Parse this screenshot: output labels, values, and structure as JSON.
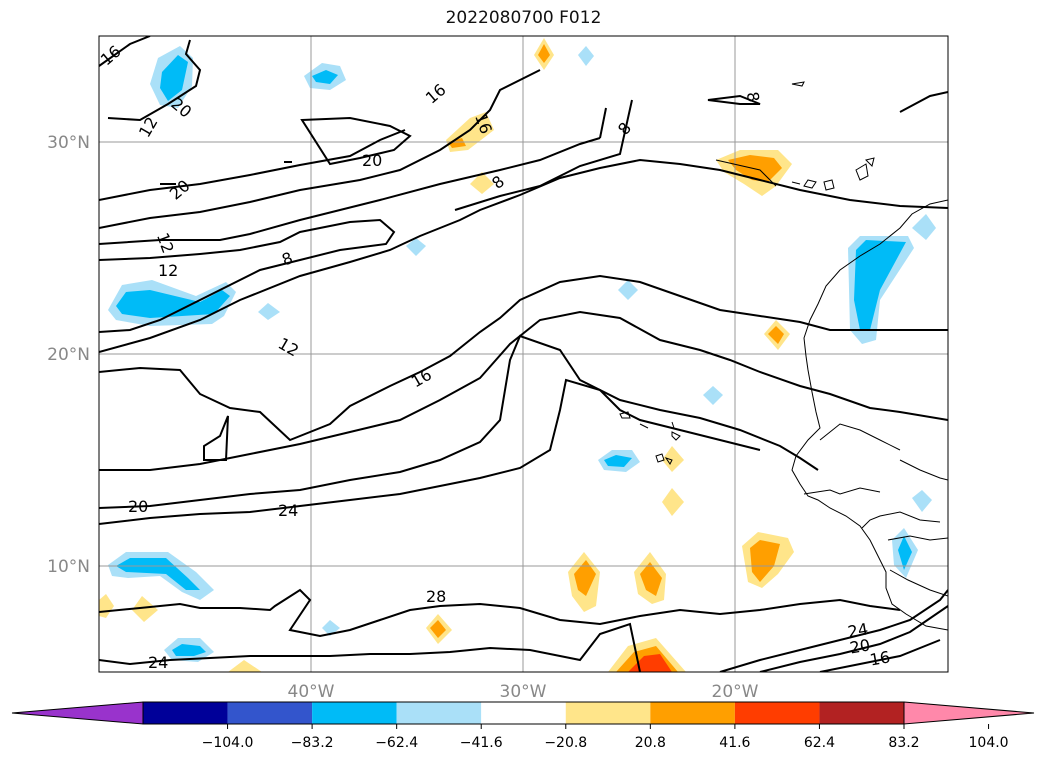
{
  "title": "2022080700 F012",
  "lat_labels": [
    "30°N",
    "20°N",
    "10°N"
  ],
  "lon_labels": [
    "40°W",
    "30°W",
    "20°W"
  ],
  "contour_labels": [
    "16",
    "20",
    "12",
    "16",
    "16",
    "8",
    "20",
    "8",
    "20",
    "8",
    "12",
    "12",
    "8",
    "12",
    "16",
    "20",
    "24",
    "28",
    "24",
    "24",
    "20",
    "16"
  ],
  "colorbar": {
    "ticks": [
      "−104.0",
      "−83.2",
      "−62.4",
      "−41.6",
      "−20.8",
      "20.8",
      "41.6",
      "62.4",
      "83.2",
      "104.0"
    ],
    "colors": [
      "#9933cc",
      "#000099",
      "#3355cc",
      "#00bbf7",
      "#aae0f8",
      "#ffffff",
      "#ffe58a",
      "#ff9f00",
      "#ff3d00",
      "#b22222",
      "#ff88aa"
    ]
  }
}
